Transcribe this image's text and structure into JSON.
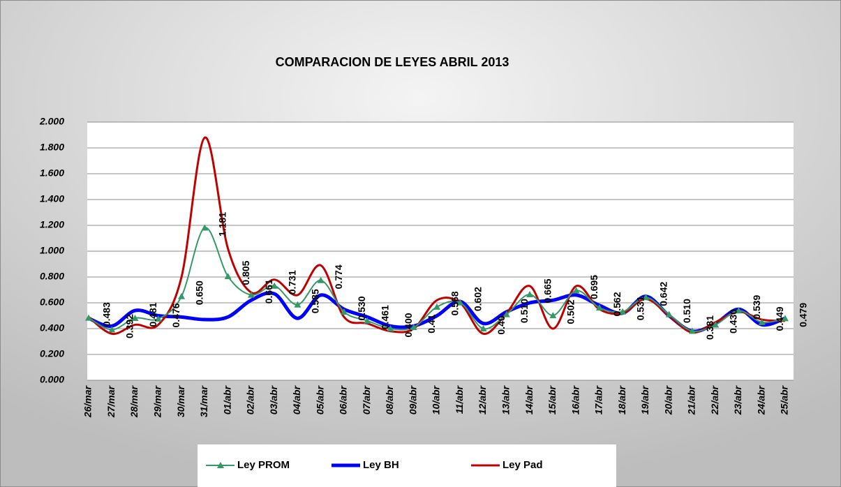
{
  "chart_data": {
    "type": "line",
    "title": "COMPARACION  DE  LEYES  ABRIL 2013",
    "categories": [
      "26/mar",
      "27/mar",
      "28/mar",
      "29/mar",
      "30/mar",
      "31/mar",
      "01/abr",
      "02/abr",
      "03/abr",
      "04/abr",
      "05/abr",
      "06/abr",
      "07/abr",
      "08/abr",
      "09/abr",
      "10/abr",
      "11/abr",
      "12/abr",
      "13/abr",
      "14/abr",
      "15/abr",
      "16/abr",
      "17/abr",
      "18/abr",
      "19/abr",
      "20/abr",
      "21/abr",
      "22/abr",
      "23/abr",
      "24/abr",
      "25/abr"
    ],
    "ylim": [
      0,
      2
    ],
    "yticks": [
      {
        "value": 0,
        "label": "0.000"
      },
      {
        "value": 0.2,
        "label": "0.200"
      },
      {
        "value": 0.4,
        "label": "0.400"
      },
      {
        "value": 0.6,
        "label": "0.600"
      },
      {
        "value": 0.8,
        "label": "0.800"
      },
      {
        "value": 1,
        "label": "1.000"
      },
      {
        "value": 1.2,
        "label": "1.200"
      },
      {
        "value": 1.4,
        "label": "1.400"
      },
      {
        "value": 1.6,
        "label": "1.600"
      },
      {
        "value": 1.8,
        "label": "1.800"
      },
      {
        "value": 2,
        "label": "2.000"
      }
    ],
    "grid": true,
    "legend": "bottom",
    "series": [
      {
        "name": "Ley PROM",
        "color": "#339966",
        "marker": "triangle",
        "values": [
          0.483,
          0.392,
          0.481,
          0.476,
          0.65,
          1.181,
          0.805,
          0.661,
          0.731,
          0.585,
          0.774,
          0.53,
          0.461,
          0.4,
          0.41,
          0.568,
          0.602,
          0.4,
          0.51,
          0.665,
          0.502,
          0.695,
          0.562,
          0.531,
          0.642,
          0.51,
          0.381,
          0.43,
          0.539,
          0.449,
          0.479
        ],
        "value_labels": [
          "0.483",
          "0.392",
          "0.481",
          "0.476",
          "0.650",
          "1.181",
          "0.805",
          "0.661",
          "0.731",
          "0.585",
          "0.774",
          "0.530",
          "0.461",
          "0.400",
          "0.41",
          "0.568",
          "0.602",
          "0.40",
          "0.510",
          "0.665",
          "0.502",
          "0.695",
          "0.562",
          "0.531",
          "0.642",
          "0.510",
          "0.381",
          "0.430",
          "0.539",
          "0.449",
          "0.479"
        ]
      },
      {
        "name": "Ley BH",
        "color": "#0000ff",
        "values": [
          0.48,
          0.42,
          0.54,
          0.5,
          0.49,
          0.47,
          0.49,
          0.62,
          0.67,
          0.48,
          0.66,
          0.55,
          0.49,
          0.42,
          0.42,
          0.5,
          0.61,
          0.44,
          0.53,
          0.6,
          0.62,
          0.66,
          0.58,
          0.52,
          0.65,
          0.5,
          0.38,
          0.44,
          0.55,
          0.43,
          0.48
        ]
      },
      {
        "name": "Ley Pad",
        "color": "#c00000",
        "values": [
          0.49,
          0.36,
          0.43,
          0.43,
          0.8,
          1.88,
          1.02,
          0.68,
          0.78,
          0.66,
          0.89,
          0.49,
          0.44,
          0.38,
          0.4,
          0.62,
          0.6,
          0.36,
          0.52,
          0.73,
          0.4,
          0.73,
          0.55,
          0.52,
          0.63,
          0.5,
          0.37,
          0.45,
          0.53,
          0.47,
          0.46
        ]
      }
    ]
  }
}
